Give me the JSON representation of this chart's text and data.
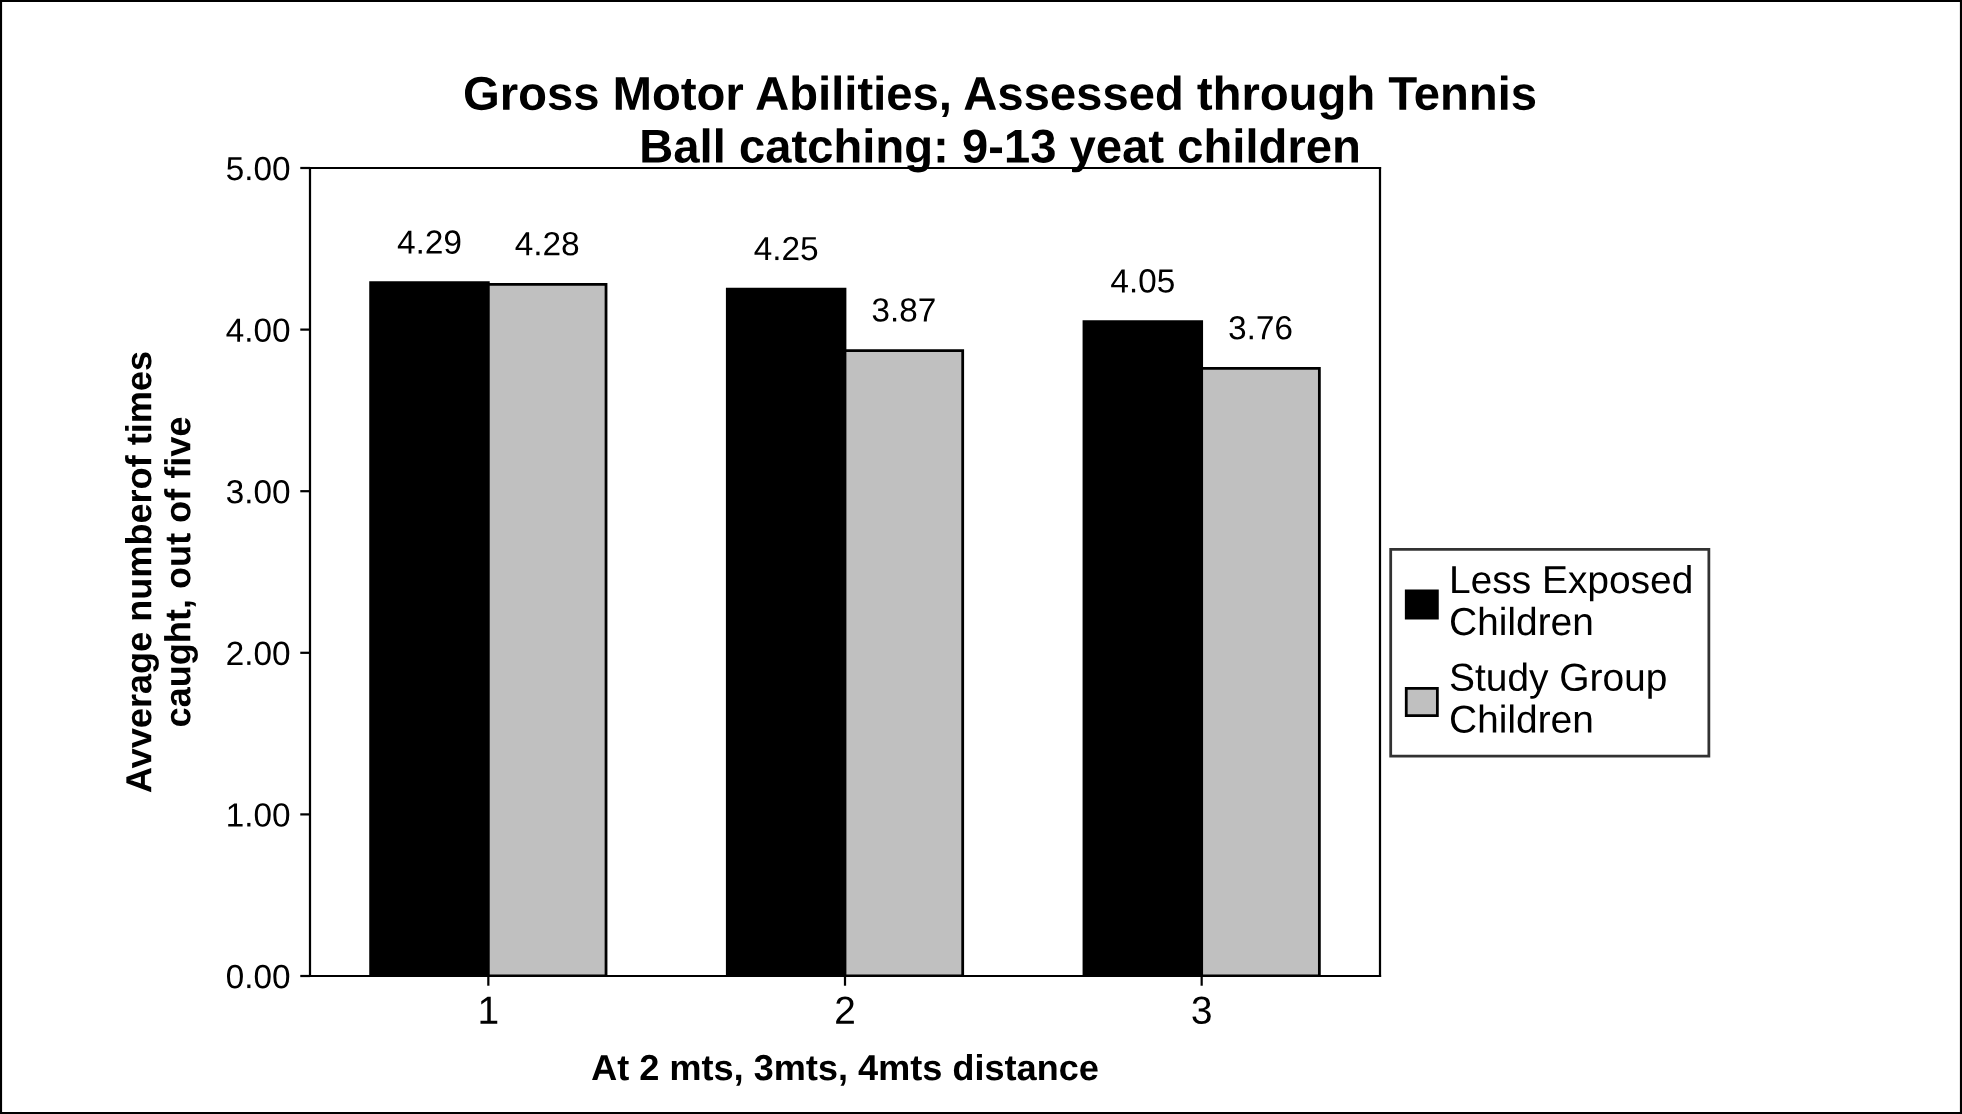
{
  "chart_data": {
    "type": "bar",
    "title": "Gross Motor Abilities, Assessed through Tennis\nBall catching: 9-13 yeat children",
    "xlabel": "At 2 mts, 3mts, 4mts distance",
    "ylabel": "Avverage numberof times\ncaught, out of five",
    "categories": [
      "1",
      "2",
      "3"
    ],
    "series": [
      {
        "name": "Less Exposed\nChildren",
        "color": "#000000",
        "values": [
          4.29,
          4.25,
          4.05
        ]
      },
      {
        "name": "Study Group\nChildren",
        "color": "#c0c0c0",
        "values": [
          4.28,
          3.87,
          3.76
        ]
      }
    ],
    "ylim": [
      0,
      5
    ],
    "yticks": [
      {
        "value": 0,
        "label": "0.00"
      },
      {
        "value": 1,
        "label": "1.00"
      },
      {
        "value": 2,
        "label": "2.00"
      },
      {
        "value": 3,
        "label": "3.00"
      },
      {
        "value": 4,
        "label": "4.00"
      },
      {
        "value": 5,
        "label": "5.00"
      }
    ],
    "data_labels": true,
    "legend": "right",
    "grid": false
  }
}
